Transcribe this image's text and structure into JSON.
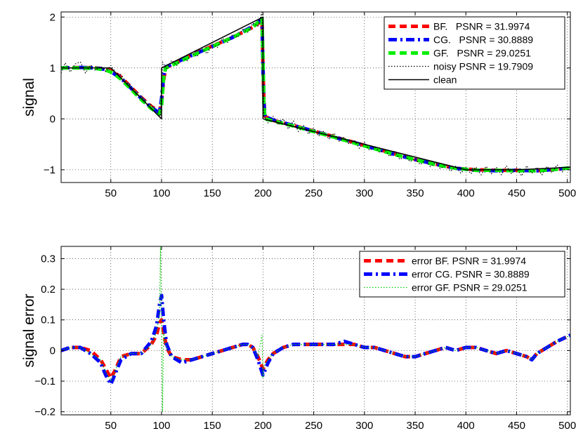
{
  "chart_data": [
    {
      "type": "line",
      "title": "",
      "xlabel": "",
      "ylabel": "signal",
      "xlim": [
        1,
        503
      ],
      "ylim": [
        -1.25,
        2.1
      ],
      "xticks": [
        50,
        100,
        150,
        200,
        250,
        300,
        350,
        400,
        450,
        500
      ],
      "xtick_labels": [
        "50",
        "100",
        "150",
        "200",
        "250",
        "300",
        "350",
        "400",
        "450",
        "500"
      ],
      "yticks": [
        -1,
        0,
        1,
        2
      ],
      "ytick_labels": [
        "−1",
        "0",
        "1",
        "2"
      ],
      "grid": true,
      "legend_position": "top-right",
      "series": [
        {
          "name": "BF.   PSNR = 31.9974",
          "color": "#ff0000",
          "style": "dashed",
          "x": [
            1,
            20,
            35,
            45,
            52,
            60,
            70,
            80,
            90,
            98,
            100,
            102,
            104,
            110,
            130,
            150,
            170,
            190,
            199,
            200,
            201,
            202,
            210,
            230,
            250,
            270,
            300,
            330,
            350,
            370,
            390,
            410,
            430,
            450,
            470,
            490,
            503
          ],
          "y": [
            1.0,
            1.01,
            1.0,
            0.98,
            0.93,
            0.82,
            0.62,
            0.42,
            0.24,
            0.14,
            0.35,
            0.75,
            1.0,
            1.06,
            1.26,
            1.43,
            1.6,
            1.8,
            1.93,
            1.0,
            0.35,
            0.05,
            -0.03,
            -0.13,
            -0.24,
            -0.35,
            -0.52,
            -0.69,
            -0.8,
            -0.89,
            -0.97,
            -1.0,
            -1.01,
            -1.01,
            -1.02,
            -0.99,
            -0.96
          ]
        },
        {
          "name": "CG.   PSNR = 30.8889",
          "color": "#0000ff",
          "style": "dashdot",
          "x": [
            1,
            20,
            35,
            45,
            52,
            60,
            70,
            80,
            90,
            98,
            100,
            102,
            104,
            110,
            130,
            150,
            170,
            190,
            199,
            200,
            201,
            202,
            210,
            230,
            250,
            270,
            300,
            330,
            350,
            370,
            390,
            410,
            430,
            450,
            470,
            490,
            503
          ],
          "y": [
            1.0,
            1.01,
            1.0,
            0.97,
            0.9,
            0.8,
            0.6,
            0.4,
            0.22,
            0.12,
            0.4,
            0.85,
            1.02,
            1.07,
            1.25,
            1.42,
            1.6,
            1.82,
            1.95,
            1.0,
            0.3,
            0.04,
            -0.02,
            -0.13,
            -0.24,
            -0.36,
            -0.52,
            -0.7,
            -0.8,
            -0.89,
            -0.97,
            -1.01,
            -1.02,
            -1.01,
            -1.02,
            -0.99,
            -0.96
          ]
        },
        {
          "name": "GF.   PSNR = 29.0251",
          "color": "#00ee00",
          "style": "dashed",
          "x": [
            1,
            20,
            35,
            45,
            52,
            60,
            70,
            80,
            90,
            98,
            100,
            102,
            104,
            110,
            130,
            150,
            170,
            190,
            199,
            200,
            201,
            202,
            210,
            230,
            250,
            270,
            300,
            330,
            350,
            370,
            390,
            410,
            430,
            450,
            470,
            490,
            503
          ],
          "y": [
            1.0,
            1.0,
            0.99,
            0.96,
            0.9,
            0.78,
            0.58,
            0.38,
            0.2,
            0.1,
            0.25,
            0.8,
            1.0,
            1.05,
            1.24,
            1.42,
            1.6,
            1.8,
            1.97,
            1.2,
            0.25,
            0.0,
            -0.04,
            -0.14,
            -0.25,
            -0.36,
            -0.53,
            -0.7,
            -0.8,
            -0.9,
            -0.97,
            -1.01,
            -1.01,
            -1.02,
            -1.02,
            -0.99,
            -0.96
          ]
        },
        {
          "name": "noisy PSNR = 19.7909",
          "color": "#000000",
          "style": "dotted",
          "x": [
            1,
            5,
            10,
            15,
            20,
            25,
            30,
            35,
            40,
            45,
            50,
            55,
            60,
            65,
            70,
            75,
            80,
            85,
            90,
            95,
            99,
            101,
            105,
            110,
            115,
            120,
            125,
            130,
            135,
            140,
            145,
            150,
            155,
            160,
            165,
            170,
            175,
            180,
            185,
            190,
            195,
            199,
            201,
            205,
            210,
            215,
            220,
            225,
            230,
            235,
            240,
            245,
            250,
            255,
            260,
            265,
            270,
            275,
            280,
            285,
            290,
            295,
            300,
            305,
            310,
            315,
            320,
            325,
            330,
            335,
            340,
            345,
            350,
            355,
            360,
            365,
            370,
            375,
            380,
            385,
            390,
            395,
            400,
            405,
            410,
            415,
            420,
            425,
            430,
            435,
            440,
            445,
            450,
            455,
            460,
            465,
            470,
            475,
            480,
            485,
            490,
            495,
            500,
            503
          ],
          "y": [
            0.9,
            1.1,
            0.92,
            1.08,
            1.12,
            0.9,
            1.06,
            0.95,
            1.03,
            0.93,
            1.05,
            0.9,
            0.87,
            0.72,
            0.65,
            0.48,
            0.45,
            0.3,
            0.28,
            0.15,
            0.05,
            1.12,
            0.98,
            1.15,
            1.05,
            1.22,
            1.14,
            1.3,
            1.22,
            1.38,
            1.28,
            1.48,
            1.4,
            1.58,
            1.5,
            1.66,
            1.6,
            1.76,
            1.7,
            1.88,
            1.82,
            2.1,
            0.06,
            -0.08,
            0.05,
            -0.12,
            0.0,
            -0.2,
            -0.04,
            -0.25,
            -0.13,
            -0.3,
            -0.18,
            -0.34,
            -0.24,
            -0.4,
            -0.28,
            -0.44,
            -0.36,
            -0.5,
            -0.42,
            -0.58,
            -0.46,
            -0.62,
            -0.55,
            -0.66,
            -0.6,
            -0.74,
            -0.64,
            -0.8,
            -0.72,
            -0.84,
            -0.78,
            -0.9,
            -0.8,
            -0.94,
            -0.86,
            -0.98,
            -0.9,
            -1.03,
            -0.93,
            -1.07,
            -0.96,
            -1.08,
            -0.95,
            -1.1,
            -0.93,
            -1.08,
            -0.95,
            -1.1,
            -0.92,
            -1.08,
            -0.96,
            -1.12,
            -0.92,
            -1.07,
            -0.95,
            -1.1,
            -0.93,
            -1.06,
            -0.9,
            -1.04,
            -0.93,
            -0.98
          ]
        },
        {
          "name": "clean",
          "color": "#000000",
          "style": "solid",
          "x": [
            1,
            50,
            100,
            100.01,
            200,
            200.01,
            400,
            450,
            503
          ],
          "y": [
            1.0,
            1.0,
            0.0,
            1.0,
            2.0,
            0.0,
            -1.0,
            -1.0,
            -0.95
          ]
        }
      ]
    },
    {
      "type": "line",
      "title": "",
      "xlabel": "",
      "ylabel": "signal error",
      "xlim": [
        1,
        503
      ],
      "ylim": [
        -0.21,
        0.34
      ],
      "xticks": [
        50,
        100,
        150,
        200,
        250,
        300,
        350,
        400,
        450,
        500
      ],
      "xtick_labels": [
        "50",
        "100",
        "150",
        "200",
        "250",
        "300",
        "350",
        "400",
        "450",
        "500"
      ],
      "yticks": [
        -0.2,
        -0.1,
        0,
        0.1,
        0.2,
        0.3
      ],
      "ytick_labels": [
        "−0.2",
        "−0.1",
        "0",
        "0.1",
        "0.2",
        "0.3"
      ],
      "grid": true,
      "legend_position": "top-right",
      "series": [
        {
          "name": "error BF. PSNR = 31.9974",
          "color": "#ff0000",
          "style": "dashed",
          "x": [
            1,
            10,
            20,
            30,
            40,
            45,
            50,
            55,
            60,
            70,
            80,
            90,
            95,
            98,
            100,
            102,
            105,
            110,
            120,
            130,
            140,
            150,
            160,
            170,
            180,
            185,
            190,
            195,
            200,
            205,
            210,
            220,
            230,
            240,
            250,
            260,
            270,
            280,
            290,
            300,
            310,
            320,
            330,
            340,
            350,
            360,
            370,
            380,
            390,
            400,
            410,
            420,
            430,
            440,
            450,
            460,
            465,
            470,
            480,
            490,
            503
          ],
          "y": [
            0.0,
            0.01,
            0.01,
            0.0,
            -0.03,
            -0.06,
            -0.09,
            -0.06,
            -0.02,
            -0.01,
            -0.01,
            0.02,
            0.05,
            0.09,
            0.1,
            0.06,
            0.01,
            -0.02,
            -0.03,
            -0.03,
            -0.02,
            -0.01,
            0.0,
            0.01,
            0.02,
            0.02,
            0.01,
            -0.02,
            -0.06,
            -0.03,
            -0.01,
            0.01,
            0.02,
            0.02,
            0.02,
            0.02,
            0.02,
            0.02,
            0.02,
            0.01,
            0.01,
            0.0,
            -0.01,
            -0.02,
            -0.02,
            -0.01,
            0.0,
            0.01,
            0.0,
            0.01,
            0.01,
            0.0,
            -0.01,
            0.0,
            -0.01,
            -0.02,
            -0.03,
            -0.01,
            0.01,
            0.03,
            0.05
          ]
        },
        {
          "name": "error CG. PSNR = 30.8889",
          "color": "#0000ff",
          "style": "dashdot",
          "x": [
            1,
            10,
            20,
            30,
            40,
            45,
            50,
            55,
            60,
            70,
            80,
            90,
            95,
            98,
            100,
            102,
            105,
            110,
            120,
            130,
            140,
            150,
            160,
            170,
            180,
            185,
            190,
            195,
            200,
            205,
            210,
            220,
            230,
            240,
            250,
            260,
            270,
            280,
            290,
            300,
            310,
            320,
            330,
            340,
            350,
            360,
            370,
            380,
            390,
            400,
            410,
            420,
            430,
            440,
            450,
            460,
            465,
            470,
            480,
            490,
            503
          ],
          "y": [
            0.0,
            0.01,
            0.01,
            -0.01,
            -0.04,
            -0.08,
            -0.11,
            -0.07,
            -0.03,
            -0.01,
            -0.01,
            0.03,
            0.08,
            0.15,
            0.18,
            0.1,
            0.02,
            -0.02,
            -0.04,
            -0.03,
            -0.02,
            -0.01,
            0.0,
            0.01,
            0.02,
            0.02,
            0.01,
            -0.03,
            -0.08,
            -0.04,
            -0.01,
            0.01,
            0.02,
            0.02,
            0.02,
            0.02,
            0.02,
            0.03,
            0.02,
            0.01,
            0.01,
            0.0,
            -0.01,
            -0.02,
            -0.02,
            -0.01,
            0.0,
            0.01,
            0.0,
            0.01,
            0.01,
            0.0,
            -0.01,
            0.0,
            -0.01,
            -0.02,
            -0.03,
            -0.01,
            0.01,
            0.03,
            0.05
          ]
        },
        {
          "name": "error GF. PSNR = 29.0251",
          "color": "#00cc00",
          "style": "dotted",
          "x": [
            1,
            10,
            20,
            30,
            40,
            45,
            50,
            55,
            60,
            70,
            80,
            90,
            95,
            98,
            99,
            100,
            101,
            102,
            105,
            110,
            120,
            130,
            140,
            150,
            160,
            170,
            180,
            185,
            190,
            195,
            199,
            200,
            201,
            205,
            210,
            220,
            230,
            240,
            250,
            260,
            270,
            280,
            290,
            300,
            310,
            320,
            330,
            340,
            350,
            360,
            370,
            380,
            390,
            400,
            410,
            420,
            430,
            440,
            450,
            460,
            465,
            470,
            480,
            490,
            503
          ],
          "y": [
            0.0,
            0.01,
            0.01,
            -0.01,
            -0.03,
            -0.07,
            -0.1,
            -0.06,
            -0.02,
            -0.01,
            -0.01,
            0.02,
            0.06,
            0.12,
            0.34,
            0.1,
            -0.2,
            0.06,
            0.01,
            -0.02,
            -0.03,
            -0.03,
            -0.02,
            -0.01,
            0.0,
            0.01,
            0.02,
            0.02,
            0.01,
            -0.02,
            0.05,
            -0.09,
            -0.05,
            -0.03,
            -0.01,
            0.01,
            0.02,
            0.02,
            0.02,
            0.02,
            0.02,
            0.02,
            0.02,
            0.01,
            0.01,
            0.0,
            -0.01,
            -0.02,
            -0.02,
            -0.01,
            0.0,
            0.01,
            0.0,
            0.01,
            0.01,
            0.0,
            -0.01,
            0.0,
            -0.01,
            -0.02,
            -0.03,
            -0.01,
            0.01,
            0.03,
            0.05
          ]
        }
      ]
    }
  ]
}
